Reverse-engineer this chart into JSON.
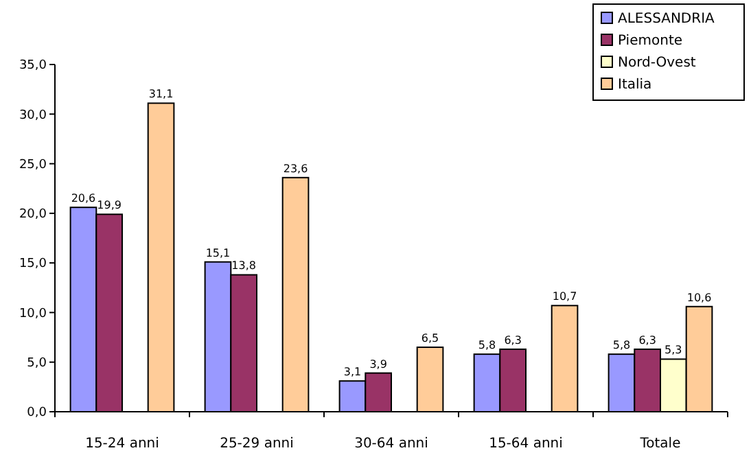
{
  "chart_data": {
    "type": "bar",
    "categories": [
      "15-24 anni",
      "25-29 anni",
      "30-64 anni",
      "15-64 anni",
      "Totale"
    ],
    "series": [
      {
        "name": "ALESSANDRIA",
        "color": "#9999ff",
        "values": [
          20.6,
          15.1,
          3.1,
          5.8,
          5.8
        ],
        "value_labels": [
          "20,6",
          "15,1",
          "3,1",
          "5,8",
          "5,8"
        ]
      },
      {
        "name": "Piemonte",
        "color": "#993366",
        "values": [
          19.9,
          13.8,
          3.9,
          6.3,
          6.3
        ],
        "value_labels": [
          "19,9",
          "13,8",
          "3,9",
          "6,3",
          "6,3"
        ]
      },
      {
        "name": "Nord-Ovest",
        "color": "#ffffcc",
        "values": [
          null,
          null,
          null,
          null,
          5.3
        ],
        "value_labels": [
          null,
          null,
          null,
          null,
          "5,3"
        ]
      },
      {
        "name": "Italia",
        "color": "#ffcc99",
        "values": [
          31.1,
          23.6,
          6.5,
          10.7,
          10.6
        ],
        "value_labels": [
          "31,1",
          "23,6",
          "6,5",
          "10,7",
          "10,6"
        ]
      }
    ],
    "ylim": [
      0,
      35
    ],
    "yticks": [
      {
        "value": 0,
        "label": "0,0"
      },
      {
        "value": 5,
        "label": "5,0"
      },
      {
        "value": 10,
        "label": "10,0"
      },
      {
        "value": 15,
        "label": "15,0"
      },
      {
        "value": 20,
        "label": "20,0"
      },
      {
        "value": 25,
        "label": "25,0"
      },
      {
        "value": 30,
        "label": "30,0"
      },
      {
        "value": 35,
        "label": "35,0"
      }
    ],
    "grid": false,
    "legend": "top right"
  }
}
